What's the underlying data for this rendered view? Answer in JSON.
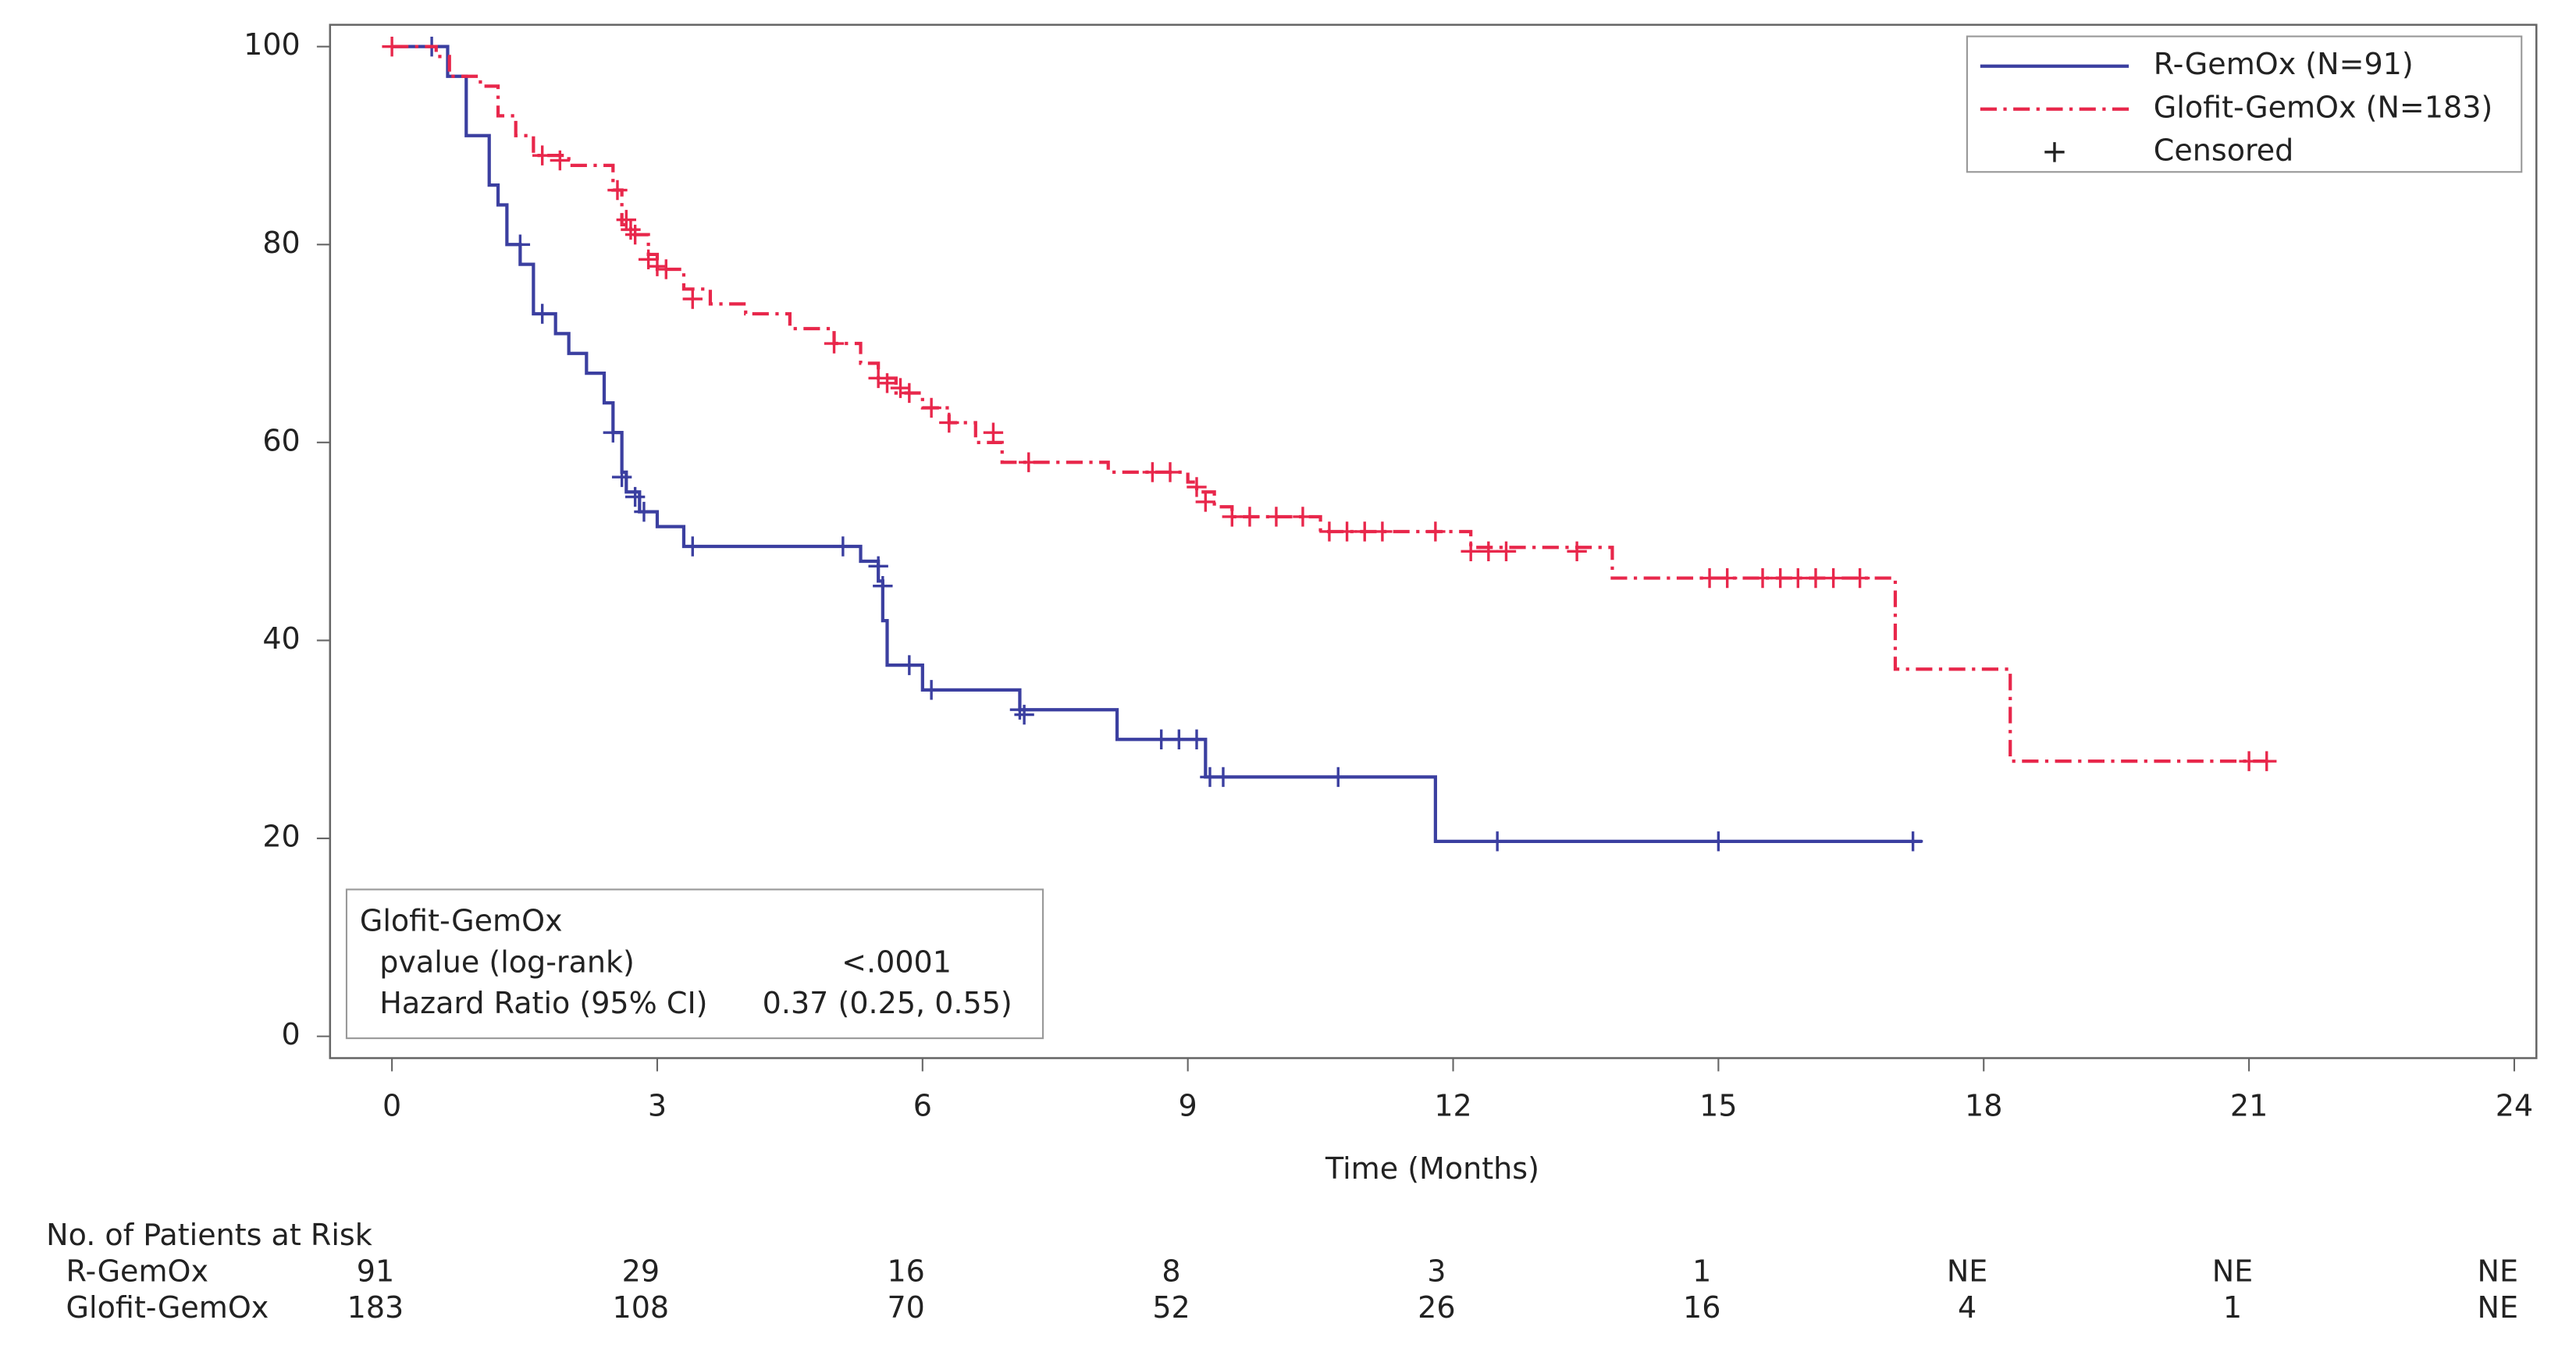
{
  "chart_data": {
    "type": "step",
    "x_label": "Time (Months)",
    "xlim": [
      -0.7,
      24.25
    ],
    "ylim": [
      -2.2,
      102.2
    ],
    "xticks": [
      0,
      3,
      6,
      9,
      12,
      15,
      18,
      21,
      24
    ],
    "yticks": [
      0,
      20,
      40,
      60,
      80,
      100
    ],
    "legend_position": "upper right",
    "censored_label": "Censored",
    "series": [
      {
        "name": "R-GemOx (N=91)",
        "color": "#3b3fa0",
        "line_style": "solid",
        "x": [
          0,
          0.63,
          0.84,
          1.1,
          1.2,
          1.3,
          1.45,
          1.6,
          1.85,
          2.0,
          2.2,
          2.4,
          2.5,
          2.6,
          2.65,
          2.8,
          3.0,
          3.3,
          5.3,
          5.5,
          5.55,
          5.6,
          6.0,
          7.1,
          8.2,
          9.2,
          11.8,
          17.3
        ],
        "values": [
          100,
          97,
          91,
          86,
          84,
          80,
          78,
          73,
          71,
          69,
          67,
          64,
          61,
          57,
          55,
          53,
          51.5,
          49.5,
          48,
          46,
          42,
          37.5,
          35,
          33,
          30,
          26.2,
          19.7,
          19.7
        ],
        "censored_x": [
          0.45,
          1.45,
          1.7,
          2.5,
          2.6,
          2.75,
          2.85,
          3.4,
          5.1,
          5.5,
          5.55,
          5.85,
          6.1,
          7.1,
          7.15,
          8.7,
          8.9,
          9.1,
          9.25,
          9.4,
          10.7,
          12.5,
          15.0,
          17.2
        ],
        "censored_values": [
          100,
          80,
          73,
          61,
          56.5,
          54.5,
          53,
          49.5,
          49.5,
          47.5,
          45.5,
          37.5,
          35,
          33,
          32.5,
          30,
          30,
          30,
          26.2,
          26.2,
          26.2,
          19.7,
          19.7,
          19.7
        ]
      },
      {
        "name": "Glofit-GemOx (N=183)",
        "color": "#e8274b",
        "line_style": "dash-dot",
        "x": [
          0,
          0.5,
          0.65,
          1.0,
          1.2,
          1.4,
          1.6,
          2.0,
          2.5,
          2.6,
          2.7,
          2.9,
          3.0,
          3.3,
          3.6,
          4.0,
          4.5,
          5.0,
          5.3,
          5.5,
          5.7,
          6.0,
          6.3,
          6.6,
          6.9,
          8.1,
          9.0,
          9.1,
          9.3,
          9.5,
          10.5,
          12.2,
          13.8,
          17.0,
          18.3,
          21.2
        ],
        "values": [
          100,
          99,
          97,
          96,
          93,
          91,
          89,
          88,
          85.5,
          82,
          81,
          79,
          77.5,
          75.5,
          74,
          73,
          71.5,
          70,
          68,
          66.5,
          65,
          63.5,
          62,
          60,
          58,
          57,
          56,
          55,
          53.5,
          52.5,
          51,
          49.4,
          46.3,
          37.1,
          27.8,
          27.8
        ],
        "censored_x": [
          0,
          1.7,
          1.9,
          2.55,
          2.65,
          2.7,
          2.75,
          2.9,
          3.0,
          3.1,
          3.4,
          5.0,
          5.5,
          5.6,
          5.75,
          5.85,
          6.1,
          6.3,
          6.8,
          7.2,
          8.6,
          8.8,
          9.1,
          9.2,
          9.5,
          9.7,
          10.0,
          10.3,
          10.6,
          10.8,
          11.0,
          11.2,
          11.8,
          12.2,
          12.4,
          12.6,
          13.4,
          14.9,
          15.1,
          15.5,
          15.7,
          15.9,
          16.1,
          16.3,
          16.6,
          21.0,
          21.2
        ],
        "censored_values": [
          100,
          89,
          88.5,
          85.5,
          82.5,
          81.5,
          81,
          78.5,
          77.8,
          77.5,
          74.5,
          70,
          66.5,
          66,
          65.5,
          65,
          63.5,
          62,
          61,
          58,
          57,
          57,
          55.5,
          54,
          52.5,
          52.5,
          52.5,
          52.5,
          51,
          51,
          51,
          51,
          51,
          49,
          49,
          49,
          49,
          46.3,
          46.3,
          46.3,
          46.3,
          46.3,
          46.3,
          46.3,
          46.3,
          27.8,
          27.8
        ]
      }
    ],
    "stats_box": {
      "title": "Glofit-GemOx",
      "rows": [
        [
          "pvalue (log-rank)",
          "<.0001"
        ],
        [
          "Hazard Ratio (95% CI)",
          "0.37 (0.25, 0.55)"
        ]
      ]
    },
    "risk_table": {
      "title": "No. of Patients at Risk",
      "rows": [
        {
          "label": "R-GemOx",
          "values": [
            91,
            29,
            16,
            8,
            3,
            1,
            "NE",
            "NE",
            "NE"
          ]
        },
        {
          "label": "Glofit-GemOx",
          "values": [
            183,
            108,
            70,
            52,
            26,
            16,
            4,
            1,
            "NE"
          ]
        }
      ]
    }
  }
}
